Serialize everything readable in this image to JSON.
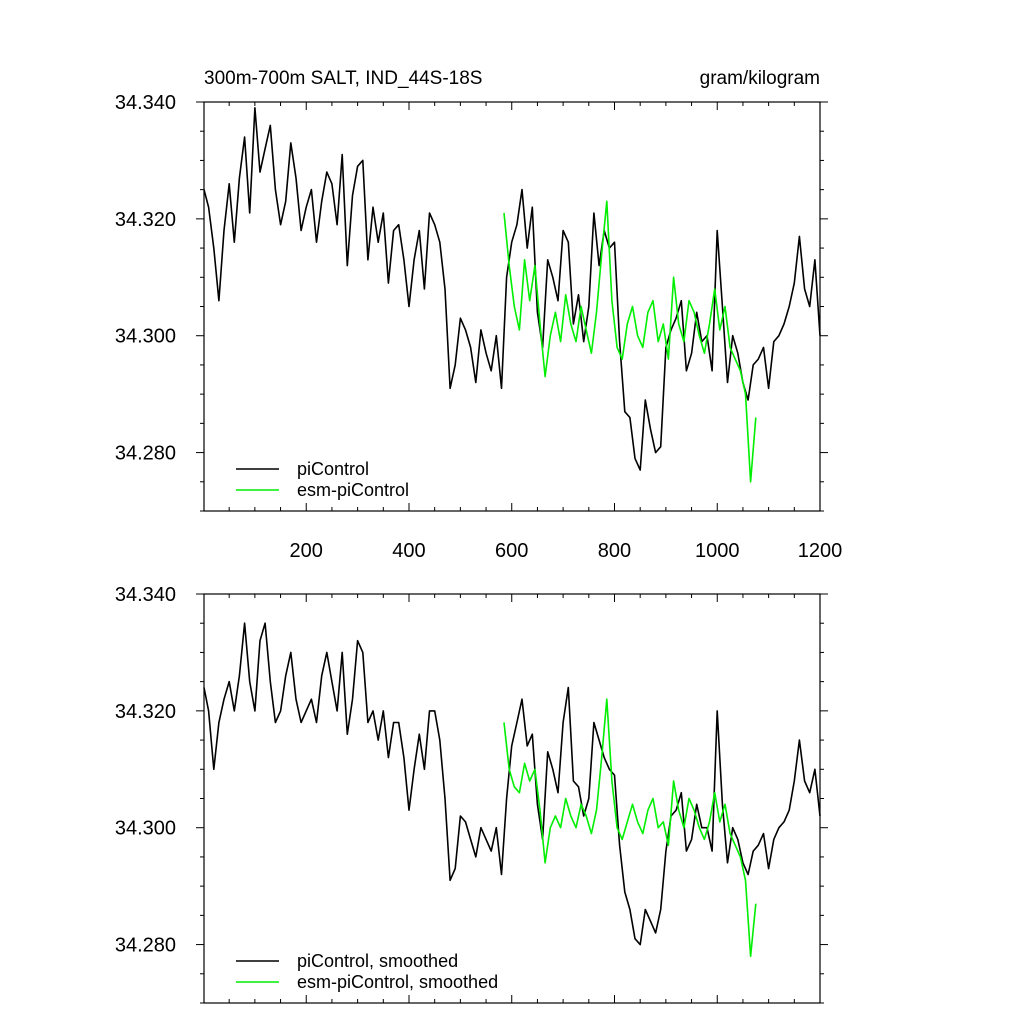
{
  "chart_data": [
    {
      "type": "line",
      "title": "300m-700m SALT, IND_44S-18S",
      "units": "gram/kilogram",
      "xlim": [
        1,
        1200
      ],
      "ylim": [
        34.27,
        34.34
      ],
      "x_ticks": [
        200,
        400,
        600,
        800,
        1000,
        1200
      ],
      "y_ticks": [
        "34.280",
        "34.300",
        "34.320",
        "34.340"
      ],
      "legend_position": "bottom-left",
      "series": [
        {
          "name": "piControl",
          "color": "#000000",
          "x": [
            1,
            10,
            20,
            30,
            40,
            50,
            60,
            70,
            80,
            90,
            100,
            110,
            120,
            130,
            140,
            150,
            160,
            170,
            180,
            190,
            200,
            210,
            220,
            230,
            240,
            250,
            260,
            270,
            280,
            290,
            300,
            310,
            320,
            330,
            340,
            350,
            360,
            370,
            380,
            390,
            400,
            410,
            420,
            430,
            440,
            450,
            460,
            470,
            480,
            490,
            500,
            510,
            520,
            530,
            540,
            550,
            560,
            570,
            580,
            590,
            600,
            610,
            620,
            630,
            640,
            650,
            660,
            670,
            680,
            690,
            700,
            710,
            720,
            730,
            740,
            750,
            760,
            770,
            780,
            790,
            800,
            810,
            820,
            830,
            840,
            850,
            860,
            870,
            880,
            890,
            900,
            910,
            920,
            930,
            940,
            950,
            960,
            970,
            980,
            990,
            1000,
            1010,
            1020,
            1030,
            1040,
            1050,
            1060,
            1070,
            1080,
            1090,
            1100,
            1110,
            1120,
            1130,
            1140,
            1150,
            1160,
            1170,
            1180,
            1190,
            1200
          ],
          "values": [
            34.325,
            34.322,
            34.315,
            34.306,
            34.318,
            34.326,
            34.316,
            34.327,
            34.334,
            34.321,
            34.339,
            34.328,
            34.332,
            34.336,
            34.325,
            34.319,
            34.323,
            34.333,
            34.327,
            34.318,
            34.322,
            34.325,
            34.316,
            34.323,
            34.328,
            34.326,
            34.319,
            34.331,
            34.312,
            34.324,
            34.329,
            34.33,
            34.313,
            34.322,
            34.316,
            34.321,
            34.309,
            34.318,
            34.319,
            34.313,
            34.305,
            34.313,
            34.318,
            34.308,
            34.321,
            34.319,
            34.316,
            34.308,
            34.291,
            34.295,
            34.303,
            34.301,
            34.298,
            34.292,
            34.301,
            34.297,
            34.294,
            34.3,
            34.291,
            34.31,
            34.316,
            34.319,
            34.325,
            34.315,
            34.322,
            34.304,
            34.298,
            34.313,
            34.31,
            34.306,
            34.318,
            34.316,
            34.302,
            34.307,
            34.299,
            34.305,
            34.321,
            34.312,
            34.318,
            34.315,
            34.316,
            34.299,
            34.287,
            34.286,
            34.279,
            34.277,
            34.289,
            34.284,
            34.28,
            34.281,
            34.298,
            34.301,
            34.303,
            34.306,
            34.294,
            34.297,
            34.304,
            34.299,
            34.3,
            34.294,
            34.318,
            34.305,
            34.292,
            34.3,
            34.297,
            34.292,
            34.289,
            34.295,
            34.296,
            34.298,
            34.291,
            34.299,
            34.3,
            34.302,
            34.305,
            34.309,
            34.317,
            34.308,
            34.305,
            34.313,
            34.3
          ]
        },
        {
          "name": "esm-piControl",
          "color": "#00ee00",
          "x": [
            585,
            595,
            605,
            615,
            625,
            635,
            645,
            655,
            665,
            675,
            685,
            695,
            705,
            715,
            725,
            735,
            745,
            755,
            765,
            775,
            785,
            795,
            805,
            815,
            825,
            835,
            845,
            855,
            865,
            875,
            885,
            895,
            905,
            915,
            925,
            935,
            945,
            955,
            965,
            975,
            985,
            995,
            1005,
            1015,
            1025,
            1035,
            1045,
            1055,
            1065,
            1075
          ],
          "values": [
            34.321,
            34.312,
            34.305,
            34.301,
            34.313,
            34.306,
            34.312,
            34.302,
            34.293,
            34.3,
            34.304,
            34.299,
            34.307,
            34.302,
            34.299,
            34.305,
            34.301,
            34.297,
            34.304,
            34.314,
            34.323,
            34.306,
            34.298,
            34.296,
            34.302,
            34.305,
            34.3,
            34.298,
            34.304,
            34.306,
            34.299,
            34.302,
            34.296,
            34.31,
            34.302,
            34.299,
            34.306,
            34.304,
            34.3,
            34.297,
            34.302,
            34.308,
            34.301,
            34.305,
            34.298,
            34.296,
            34.294,
            34.29,
            34.275,
            34.286
          ]
        }
      ]
    },
    {
      "type": "line",
      "xlim": [
        1,
        1200
      ],
      "ylim": [
        34.27,
        34.34
      ],
      "y_ticks": [
        "34.280",
        "34.300",
        "34.320",
        "34.340"
      ],
      "legend_position": "bottom-left",
      "series": [
        {
          "name": "piControl, smoothed",
          "color": "#000000",
          "x": [
            1,
            10,
            20,
            30,
            40,
            50,
            60,
            70,
            80,
            90,
            100,
            110,
            120,
            130,
            140,
            150,
            160,
            170,
            180,
            190,
            200,
            210,
            220,
            230,
            240,
            250,
            260,
            270,
            280,
            290,
            300,
            310,
            320,
            330,
            340,
            350,
            360,
            370,
            380,
            390,
            400,
            410,
            420,
            430,
            440,
            450,
            460,
            470,
            480,
            490,
            500,
            510,
            520,
            530,
            540,
            550,
            560,
            570,
            580,
            590,
            600,
            610,
            620,
            630,
            640,
            650,
            660,
            670,
            680,
            690,
            700,
            710,
            720,
            730,
            740,
            750,
            760,
            770,
            780,
            790,
            800,
            810,
            820,
            830,
            840,
            850,
            860,
            870,
            880,
            890,
            900,
            910,
            920,
            930,
            940,
            950,
            960,
            970,
            980,
            990,
            1000,
            1010,
            1020,
            1030,
            1040,
            1050,
            1060,
            1070,
            1080,
            1090,
            1100,
            1110,
            1120,
            1130,
            1140,
            1150,
            1160,
            1170,
            1180,
            1190,
            1200
          ],
          "values": [
            34.324,
            34.32,
            34.31,
            34.318,
            34.322,
            34.325,
            34.32,
            34.326,
            34.335,
            34.325,
            34.32,
            34.332,
            34.335,
            34.325,
            34.318,
            34.32,
            34.326,
            34.33,
            34.322,
            34.318,
            34.32,
            34.322,
            34.318,
            34.326,
            34.33,
            34.325,
            34.32,
            34.33,
            34.316,
            34.322,
            34.332,
            34.33,
            34.318,
            34.32,
            34.315,
            34.32,
            34.312,
            34.318,
            34.318,
            34.312,
            34.303,
            34.31,
            34.316,
            34.31,
            34.32,
            34.32,
            34.315,
            34.305,
            34.291,
            34.293,
            34.302,
            34.301,
            34.298,
            34.295,
            34.3,
            34.298,
            34.296,
            34.3,
            34.292,
            34.305,
            34.314,
            34.318,
            34.322,
            34.314,
            34.316,
            34.304,
            34.298,
            34.313,
            34.31,
            34.306,
            34.318,
            34.324,
            34.308,
            34.307,
            34.302,
            34.305,
            34.318,
            34.315,
            34.312,
            34.31,
            34.309,
            34.297,
            34.289,
            34.286,
            34.281,
            34.28,
            34.286,
            34.284,
            34.282,
            34.286,
            34.296,
            34.302,
            34.303,
            34.306,
            34.296,
            34.298,
            34.304,
            34.3,
            34.3,
            34.296,
            34.32,
            34.304,
            34.294,
            34.3,
            34.298,
            34.294,
            34.292,
            34.296,
            34.297,
            34.299,
            34.293,
            34.298,
            34.3,
            34.301,
            34.303,
            34.308,
            34.315,
            34.308,
            34.306,
            34.31,
            34.302
          ]
        },
        {
          "name": "esm-piControl, smoothed",
          "color": "#00ee00",
          "x": [
            585,
            595,
            605,
            615,
            625,
            635,
            645,
            655,
            665,
            675,
            685,
            695,
            705,
            715,
            725,
            735,
            745,
            755,
            765,
            775,
            785,
            795,
            805,
            815,
            825,
            835,
            845,
            855,
            865,
            875,
            885,
            895,
            905,
            915,
            925,
            935,
            945,
            955,
            965,
            975,
            985,
            995,
            1005,
            1015,
            1025,
            1035,
            1045,
            1055,
            1065,
            1075
          ],
          "values": [
            34.318,
            34.31,
            34.307,
            34.306,
            34.311,
            34.308,
            34.31,
            34.303,
            34.294,
            34.3,
            34.302,
            34.3,
            34.305,
            34.302,
            34.3,
            34.304,
            34.302,
            34.299,
            34.303,
            34.312,
            34.322,
            34.308,
            34.3,
            34.298,
            34.301,
            34.304,
            34.301,
            34.299,
            34.303,
            34.305,
            34.3,
            34.301,
            34.297,
            34.308,
            34.303,
            34.3,
            34.305,
            34.303,
            34.3,
            34.298,
            34.301,
            34.306,
            34.301,
            34.304,
            34.299,
            34.297,
            34.295,
            34.291,
            34.278,
            34.287
          ]
        }
      ]
    }
  ]
}
